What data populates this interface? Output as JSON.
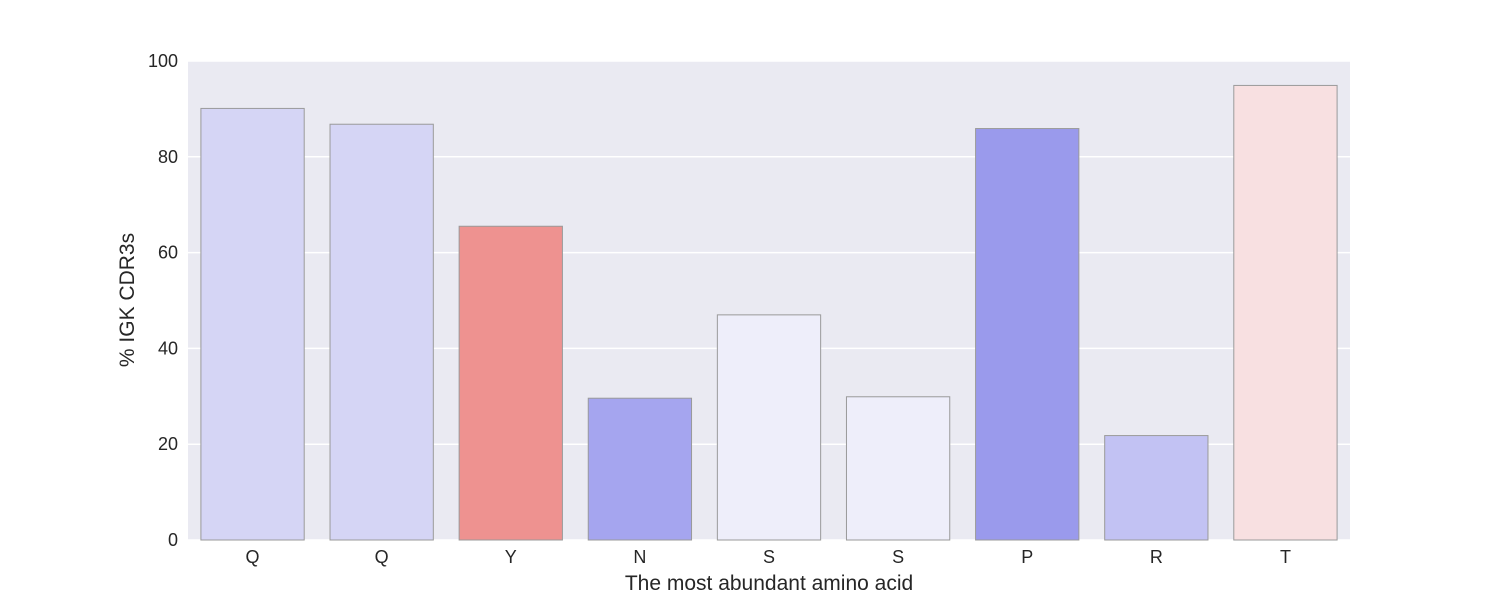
{
  "chart_data": {
    "type": "bar",
    "title": "",
    "xlabel": "The most abundant amino acid",
    "ylabel": "% IGK CDR3s",
    "ylim": [
      0,
      100
    ],
    "yticks": [
      0,
      20,
      40,
      60,
      80,
      100
    ],
    "grid": true,
    "categories": [
      "Q",
      "Q",
      "Y",
      "N",
      "S",
      "S",
      "P",
      "R",
      "T"
    ],
    "values": [
      90.1,
      86.8,
      65.5,
      29.6,
      47.0,
      29.9,
      85.9,
      21.8,
      94.9
    ],
    "bar_colors": [
      "#d5d5f5",
      "#d5d5f5",
      "#ee9290",
      "#a5a5ef",
      "#eeeefa",
      "#eeeefa",
      "#9a9aec",
      "#c2c2f3",
      "#f8e0e1"
    ],
    "plot_background": "#eaeaf2",
    "gridline_color": "#ffffff",
    "bar_edge_color": "#9a9a9a"
  }
}
